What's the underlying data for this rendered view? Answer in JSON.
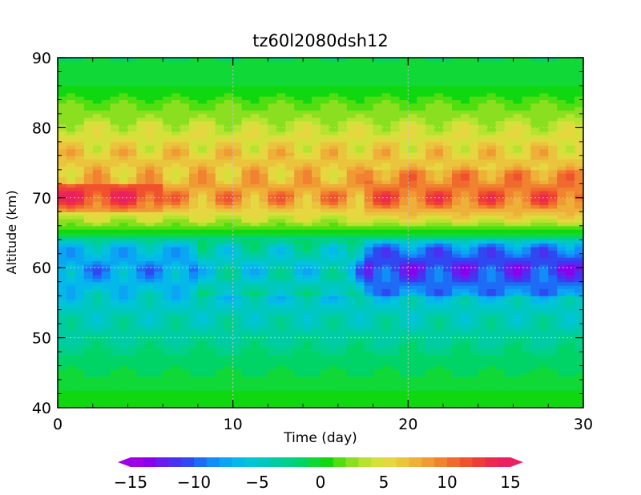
{
  "chart_data": {
    "type": "heatmap",
    "title": "tz60l2080dsh12",
    "xlabel": "Time (day)",
    "ylabel": "Altitude (km)",
    "xlim": [
      0,
      30
    ],
    "ylim": [
      40,
      90
    ],
    "x_ticks": [
      "0",
      "10",
      "20",
      "30"
    ],
    "y_ticks": [
      "40",
      "50",
      "60",
      "70",
      "80",
      "90"
    ],
    "grid": true,
    "colorbar": {
      "levels": [
        -15,
        -14,
        -13,
        -12,
        -11,
        -10,
        -9,
        -8,
        -7,
        -6,
        -5,
        -4,
        -3,
        -2,
        -1,
        0,
        1,
        2,
        3,
        4,
        5,
        6,
        7,
        8,
        9,
        10,
        11,
        12,
        13,
        14,
        15
      ],
      "tick_labels": [
        "−15",
        "−10",
        "−5",
        "0",
        "5",
        "10",
        "15"
      ],
      "extend": "both",
      "colors": [
        "#a000e6",
        "#8a00ec",
        "#6a1cf0",
        "#4a30f0",
        "#2f48f2",
        "#1e6cf5",
        "#128cf6",
        "#0aa6f4",
        "#04b8ea",
        "#02c4d8",
        "#00c8c0",
        "#00cca4",
        "#00d088",
        "#00d466",
        "#10d836",
        "#10d810",
        "#50de10",
        "#8ae020",
        "#b6e230",
        "#d6e03a",
        "#e6d640",
        "#eac43c",
        "#eeb038",
        "#f09a34",
        "#f08230",
        "#f06a2e",
        "#f0522e",
        "#ee3c38",
        "#ec2a4c",
        "#ea2060"
      ]
    },
    "z_levels_by_altitude": [
      {
        "altitude_km": 40,
        "value": 1
      },
      {
        "altitude_km": 45,
        "value": -1
      },
      {
        "altitude_km": 50,
        "value": -3
      },
      {
        "altitude_km": 55,
        "value": -5
      },
      {
        "altitude_km": 60,
        "value": -8
      },
      {
        "altitude_km": 63,
        "value": -6
      },
      {
        "altitude_km": 65,
        "value": 0
      },
      {
        "altitude_km": 67,
        "value": 4
      },
      {
        "altitude_km": 70,
        "value": 9
      },
      {
        "altitude_km": 73,
        "value": 7
      },
      {
        "altitude_km": 77,
        "value": 6
      },
      {
        "altitude_km": 80,
        "value": 4
      },
      {
        "altitude_km": 83,
        "value": 2
      },
      {
        "altitude_km": 86,
        "value": 0
      },
      {
        "altitude_km": 90,
        "value": -1
      }
    ]
  }
}
